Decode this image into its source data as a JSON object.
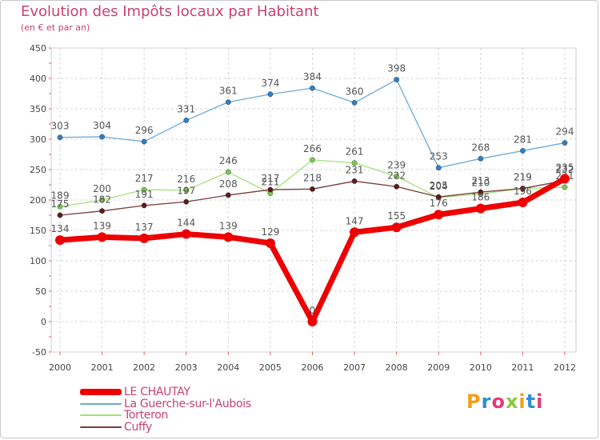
{
  "brand": {
    "name": "Proxiti",
    "letters": [
      "P",
      "r",
      "o",
      "x",
      "i",
      "t",
      "i"
    ],
    "letter_colors": [
      "#f29e1b",
      "#2a8fd6",
      "#e23b7a",
      "#8cc63f",
      "#f29e1b",
      "#2a8fd6",
      "#e23b7a"
    ]
  },
  "chart_data": {
    "type": "line",
    "title": "Evolution des Impôts locaux par Habitant",
    "subtitle": "(en € et par an)",
    "xlabel": "",
    "ylabel": "",
    "ylim": [
      -50,
      450
    ],
    "yticks": [
      -50,
      0,
      50,
      100,
      150,
      200,
      250,
      300,
      350,
      400,
      450
    ],
    "grid": true,
    "legend_position": "bottom-left",
    "x": [
      "2000",
      "2001",
      "2002",
      "2003",
      "2004",
      "2005",
      "2006",
      "2007",
      "2008",
      "2009",
      "2010",
      "2011",
      "2012"
    ],
    "series": [
      {
        "name": "LE CHAUTAY",
        "color": "#ee0000",
        "emphasis": "thick",
        "values": [
          134,
          139,
          137,
          144,
          139,
          129,
          0,
          147,
          155,
          176,
          186,
          196,
          235
        ]
      },
      {
        "name": "La Guerche-sur-l'Aubois",
        "color": "#6ca9d8",
        "marker_color": "#2e7fc4",
        "emphasis": "thin",
        "values": [
          303,
          304,
          296,
          331,
          361,
          374,
          384,
          360,
          398,
          253,
          268,
          281,
          294
        ]
      },
      {
        "name": "Torteron",
        "color": "#a6e07c",
        "marker_color": "#79c94a",
        "emphasis": "thin",
        "values": [
          189,
          200,
          217,
          216,
          246,
          211,
          266,
          261,
          239,
          204,
          210,
          219,
          221
        ]
      },
      {
        "name": "Cuffy",
        "color": "#7a3b3b",
        "marker_color": "#5c1a1a",
        "emphasis": "thin",
        "values": [
          175,
          182,
          191,
          197,
          208,
          217,
          218,
          231,
          222,
          205,
          213,
          219,
          232
        ]
      }
    ]
  }
}
